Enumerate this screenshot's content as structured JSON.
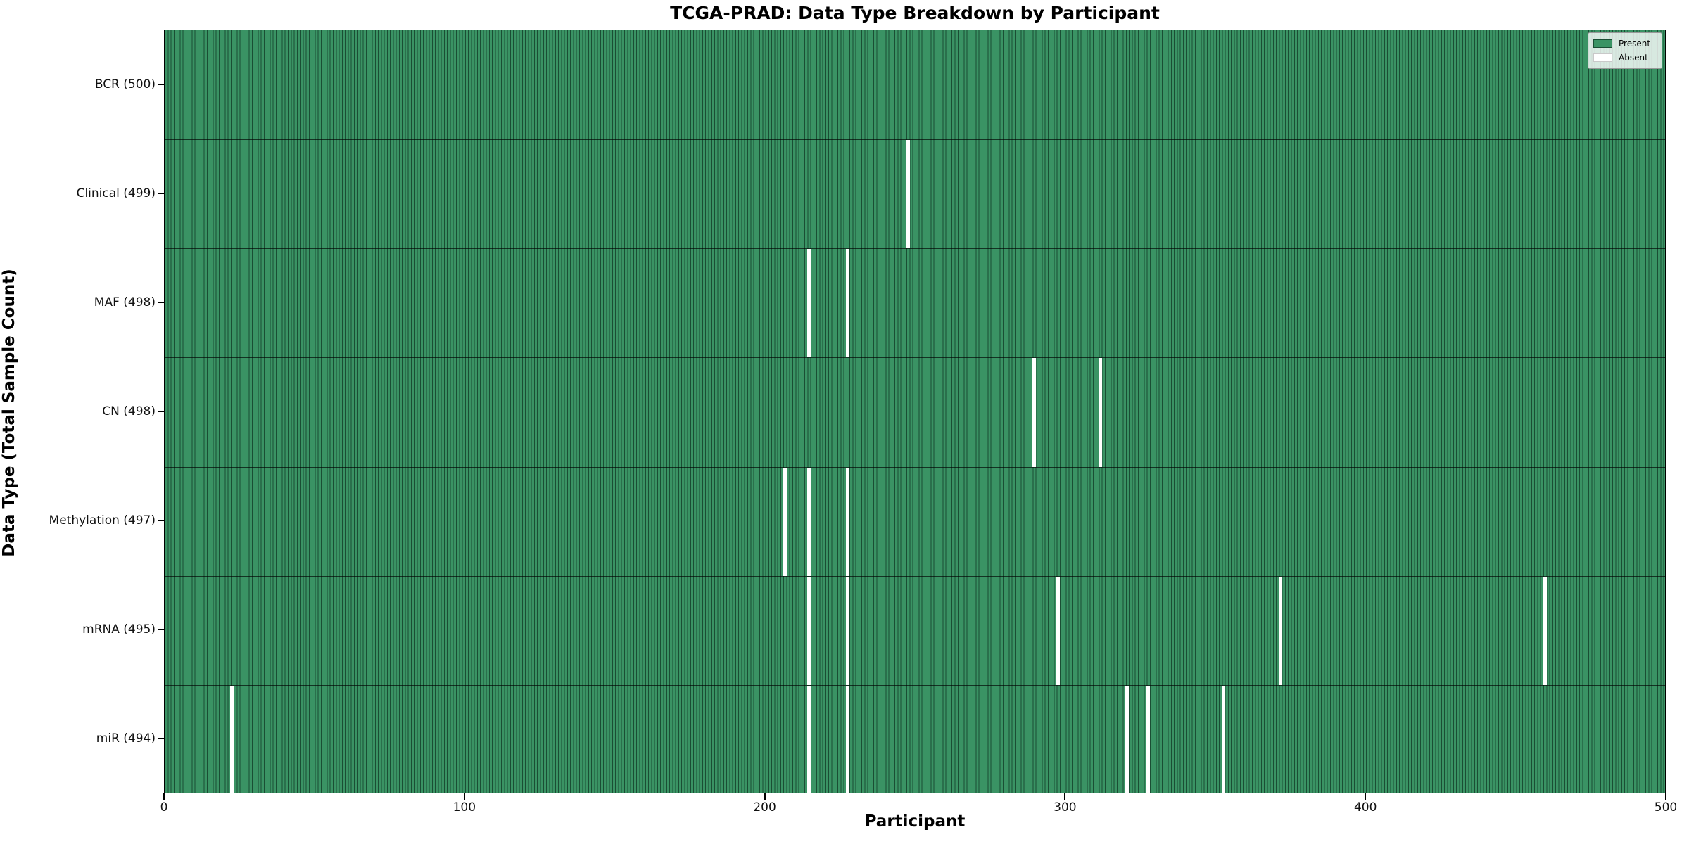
{
  "chart_data": {
    "type": "heatmap",
    "title": "TCGA-PRAD: Data Type Breakdown by Participant",
    "xlabel": "Participant",
    "ylabel": "Data Type (Total Sample Count)",
    "x_min": 0,
    "x_max": 500,
    "x_ticks": [
      0,
      100,
      200,
      300,
      400,
      500
    ],
    "n_participants": 500,
    "grid": false,
    "legend_position": "upper right",
    "legend": [
      {
        "label": "Present",
        "color": "#3a9364"
      },
      {
        "label": "Absent",
        "color": "#ffffff"
      }
    ],
    "colors": {
      "present_fill": "#3a9364",
      "bar_edge": "#1a4e34",
      "absent": "#ffffff",
      "background": "#ffffff"
    },
    "rows": [
      {
        "label": "BCR (500)",
        "data_type": "BCR",
        "total": 500,
        "absent_participants": []
      },
      {
        "label": "Clinical (499)",
        "data_type": "Clinical",
        "total": 499,
        "absent_participants": [
          247
        ]
      },
      {
        "label": "MAF (498)",
        "data_type": "MAF",
        "total": 498,
        "absent_participants": [
          214,
          227
        ]
      },
      {
        "label": "CN (498)",
        "data_type": "CN",
        "total": 498,
        "absent_participants": [
          289,
          311
        ]
      },
      {
        "label": "Methylation (497)",
        "data_type": "Methylation",
        "total": 497,
        "absent_participants": [
          206,
          214,
          227
        ]
      },
      {
        "label": "mRNA (495)",
        "data_type": "mRNA",
        "total": 495,
        "absent_participants": [
          214,
          227,
          297,
          371,
          459
        ]
      },
      {
        "label": "miR (494)",
        "data_type": "miR",
        "total": 494,
        "absent_participants": [
          22,
          214,
          227,
          320,
          327,
          352
        ]
      }
    ]
  }
}
